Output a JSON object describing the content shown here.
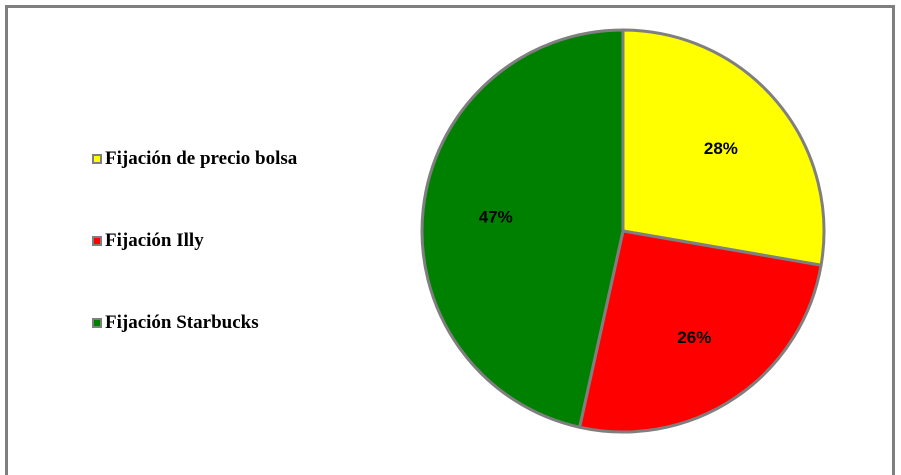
{
  "chart_data": {
    "type": "pie",
    "categories": [
      "Fijación de precio bolsa",
      "Fijación Illy",
      "Fijación Starbucks"
    ],
    "values": [
      28,
      26,
      47
    ],
    "labels": [
      "28%",
      "26%",
      "47%"
    ],
    "colors": [
      "#ffff00",
      "#ff0000",
      "#008000"
    ],
    "slice_border_color": "#7f7f7f",
    "legend_position": "left",
    "start_angle_deg": 0,
    "direction": "clockwise"
  }
}
